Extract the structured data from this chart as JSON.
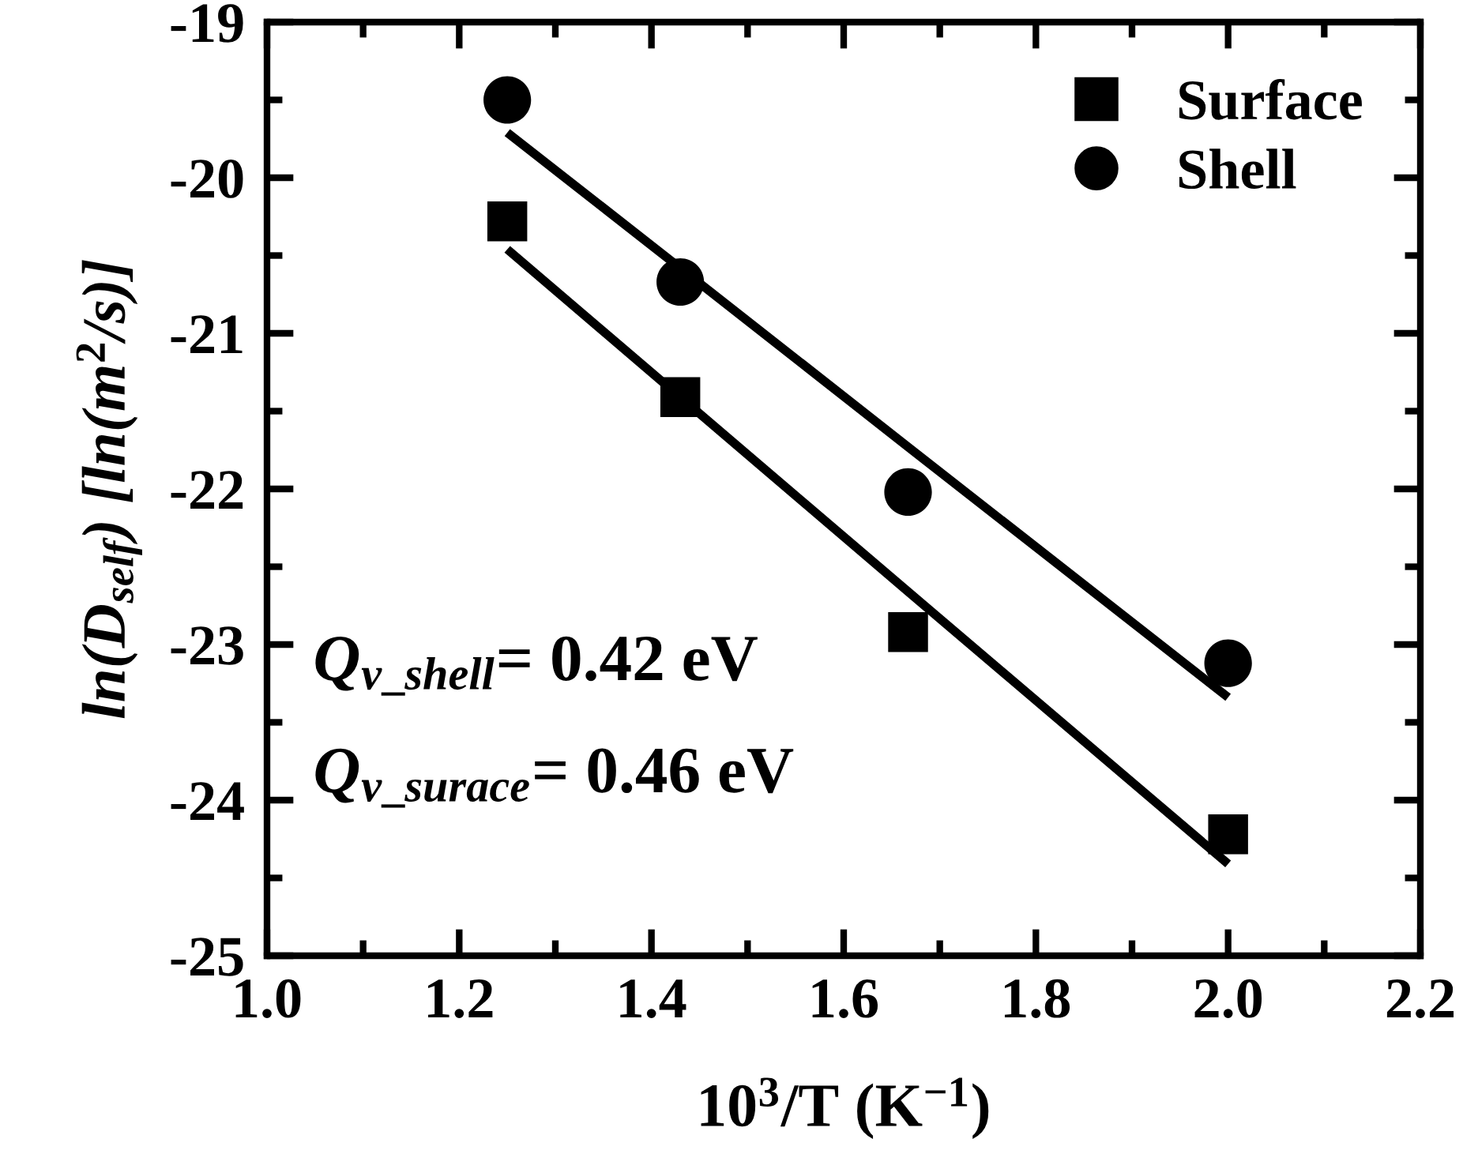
{
  "chart_data": {
    "type": "scatter",
    "xlabel": "10$^{3}$/T (K$^{−1}$)",
    "ylabel": "ln(D$_{self}$) [ln(m$^{2}$/s)]",
    "x": [
      1.25,
      1.43,
      1.667,
      2.0
    ],
    "series": [
      {
        "name": "Surface",
        "color": "#000000",
        "marker": "square",
        "values": [
          -20.28,
          -21.41,
          -22.92,
          -24.22
        ]
      },
      {
        "name": "Shell",
        "color": "#000000",
        "marker": "circle",
        "values": [
          -19.5,
          -20.67,
          -22.02,
          -23.12
        ]
      },
      {
        "type": "line",
        "color": "#000000",
        "values": [
          -19.71,
          -20.58,
          -21.73,
          -23.34
        ],
        "line_style": "solid"
      },
      {
        "type": "line",
        "color": "#000000",
        "values": [
          -20.46,
          -21.41,
          -22.66,
          -24.41
        ],
        "line_style": "solid"
      }
    ],
    "annotations": [
      "Q$_{v_shell}$= 0.42 eV",
      "Q$_{v_surace}$= 0.46 eV"
    ],
    "xlim": [
      1.0,
      2.2
    ],
    "xticks": [
      {
        "value": 1.0,
        "label": "1.0"
      },
      {
        "value": 1.2,
        "label": "1.2"
      },
      {
        "value": 1.4,
        "label": "1.4"
      },
      {
        "value": 1.6,
        "label": "1.6"
      },
      {
        "value": 1.8,
        "label": "1.8"
      },
      {
        "value": 2.0,
        "label": "2.0"
      },
      {
        "value": 2.2,
        "label": "2.2"
      }
    ],
    "ylim": [
      -25,
      -19
    ],
    "yticks": [
      -25,
      -24,
      -23,
      -22,
      -21,
      -20,
      -19
    ],
    "grid": false,
    "legend": "top right"
  }
}
